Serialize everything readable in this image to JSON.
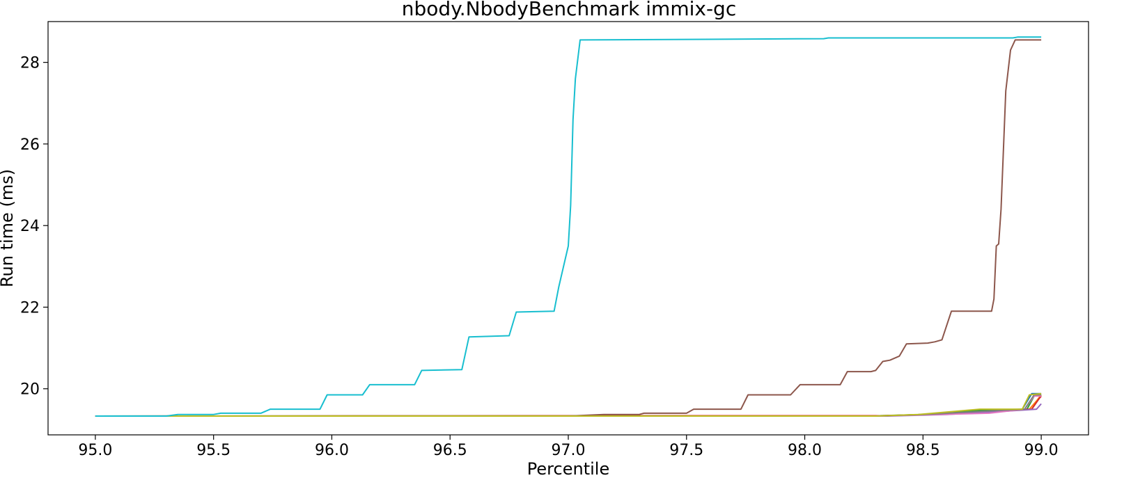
{
  "chart_data": {
    "type": "line",
    "title": "nbody.NbodyBenchmark immix-gc",
    "xlabel": "Percentile",
    "ylabel": "Run time (ms)",
    "xlim": [
      94.8,
      99.2
    ],
    "ylim": [
      18.87,
      29.0
    ],
    "xticks": [
      95.0,
      95.5,
      96.0,
      96.5,
      97.0,
      97.5,
      98.0,
      98.5,
      99.0
    ],
    "xtick_labels": [
      "95.0",
      "95.5",
      "96.0",
      "96.5",
      "97.0",
      "97.5",
      "98.0",
      "98.5",
      "99.0"
    ],
    "yticks": [
      20,
      22,
      24,
      26,
      28
    ],
    "ytick_labels": [
      "20",
      "22",
      "24",
      "26",
      "28"
    ],
    "grid": false,
    "legend": "none",
    "series": [
      {
        "color": "#1f77b4",
        "x": [
          95.0,
          98.3,
          98.5,
          98.75,
          98.92,
          98.96,
          99.0
        ],
        "y": [
          19.33,
          19.33,
          19.37,
          19.45,
          19.5,
          19.88,
          19.88
        ]
      },
      {
        "color": "#ff7f0e",
        "x": [
          95.0,
          98.3,
          98.5,
          98.8,
          98.95,
          98.98,
          99.0
        ],
        "y": [
          19.33,
          19.33,
          19.37,
          19.45,
          19.5,
          19.7,
          19.85
        ]
      },
      {
        "color": "#2ca02c",
        "x": [
          95.0,
          98.32,
          98.5,
          98.75,
          98.94,
          98.97,
          99.0
        ],
        "y": [
          19.33,
          19.34,
          19.37,
          19.48,
          19.5,
          19.82,
          19.85
        ]
      },
      {
        "color": "#d62728",
        "x": [
          95.0,
          98.33,
          98.55,
          98.8,
          98.96,
          98.99,
          99.0
        ],
        "y": [
          19.33,
          19.34,
          19.37,
          19.45,
          19.5,
          19.75,
          19.82
        ]
      },
      {
        "color": "#9467bd",
        "x": [
          95.0,
          98.35,
          98.6,
          98.85,
          98.98,
          99.0
        ],
        "y": [
          19.33,
          19.33,
          19.37,
          19.45,
          19.5,
          19.63
        ]
      },
      {
        "color": "#8c564b",
        "x": [
          95.0,
          97.0,
          97.15,
          97.3,
          97.32,
          97.5,
          97.53,
          97.73,
          97.76,
          97.94,
          97.98,
          98.15,
          98.18,
          98.28,
          98.3,
          98.33,
          98.36,
          98.4,
          98.43,
          98.52,
          98.55,
          98.58,
          98.62,
          98.79,
          98.8,
          98.81,
          98.82,
          98.83,
          98.85,
          98.87,
          98.89,
          99.0
        ],
        "y": [
          19.33,
          19.33,
          19.37,
          19.37,
          19.4,
          19.4,
          19.5,
          19.5,
          19.85,
          19.85,
          20.1,
          20.1,
          20.42,
          20.42,
          20.45,
          20.67,
          20.7,
          20.8,
          21.1,
          21.12,
          21.15,
          21.2,
          21.9,
          21.9,
          22.2,
          23.5,
          23.55,
          24.4,
          27.3,
          28.3,
          28.55,
          28.55
        ]
      },
      {
        "color": "#e377c2",
        "x": [
          95.0,
          98.3,
          98.5,
          98.78,
          98.93,
          98.97,
          99.0
        ],
        "y": [
          19.33,
          19.33,
          19.36,
          19.4,
          19.5,
          19.82,
          19.82
        ]
      },
      {
        "color": "#7f7f7f",
        "x": [
          95.0,
          98.3,
          98.5,
          98.76,
          98.93,
          98.97,
          99.0
        ],
        "y": [
          19.33,
          19.33,
          19.37,
          19.45,
          19.5,
          19.85,
          19.86
        ]
      },
      {
        "color": "#bcbd22",
        "x": [
          95.0,
          98.3,
          98.48,
          98.74,
          98.92,
          98.95,
          99.0
        ],
        "y": [
          19.33,
          19.33,
          19.37,
          19.5,
          19.5,
          19.85,
          19.88
        ]
      },
      {
        "color": "#17becf",
        "x": [
          95.0,
          95.3,
          95.35,
          95.5,
          95.53,
          95.7,
          95.74,
          95.95,
          95.98,
          96.13,
          96.16,
          96.35,
          96.38,
          96.55,
          96.58,
          96.75,
          96.78,
          96.94,
          96.96,
          96.98,
          97.0,
          97.01,
          97.02,
          97.03,
          97.05,
          98.08,
          98.1,
          98.88,
          98.9,
          99.0
        ],
        "y": [
          19.33,
          19.33,
          19.37,
          19.37,
          19.4,
          19.4,
          19.5,
          19.5,
          19.85,
          19.85,
          20.1,
          20.1,
          20.45,
          20.47,
          21.27,
          21.3,
          21.88,
          21.9,
          22.5,
          23.0,
          23.5,
          24.5,
          26.6,
          27.6,
          28.55,
          28.58,
          28.6,
          28.6,
          28.62,
          28.62
        ]
      }
    ]
  }
}
